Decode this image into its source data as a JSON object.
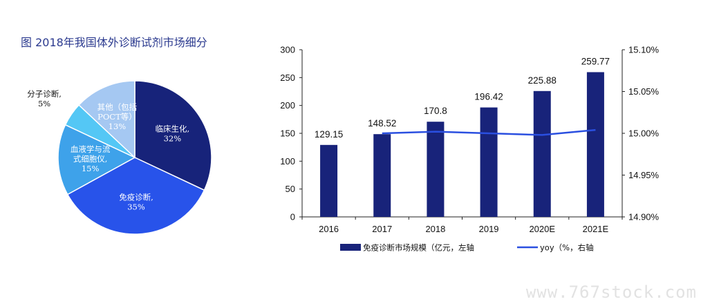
{
  "watermark": "www.767stock.com",
  "chart_data": [
    {
      "type": "pie",
      "title": "图 2018年我国体外诊断试剂市场细分",
      "slices": [
        {
          "label": [
            "临床生化,",
            "32%"
          ],
          "value": 32,
          "color": "#17237a",
          "text_color": "#ffffff"
        },
        {
          "label": [
            "免疫诊断,",
            "35%"
          ],
          "value": 35,
          "color": "#2853ea",
          "text_color": "#ffffff"
        },
        {
          "label": [
            "血液学与流",
            "式细胞仪,",
            "15%"
          ],
          "value": 15,
          "color": "#3ea2ea",
          "text_color": "#ffffff"
        },
        {
          "label": [
            "分子诊断,",
            "5%"
          ],
          "value": 5,
          "color": "#54c7f5",
          "text_color": "#111111",
          "outside": true
        },
        {
          "label": [
            "其他（包括",
            "POCT等）",
            "13%"
          ],
          "value": 13,
          "color": "#a5c8f2",
          "text_color": "#ffffff"
        }
      ]
    },
    {
      "type": "bar",
      "categories": [
        "2016",
        "2017",
        "2018",
        "2019",
        "2020E",
        "2021E"
      ],
      "series": [
        {
          "name": "免疫诊断市场规模（亿元，左轴",
          "type": "bar",
          "axis": "left",
          "color": "#18237a",
          "values": [
            129.15,
            148.52,
            170.8,
            196.42,
            225.88,
            259.77
          ],
          "labels": [
            "129.15",
            "148.52",
            "170.8",
            "196.42",
            "225.88",
            "259.77"
          ]
        },
        {
          "name": "yoy（%，右轴",
          "type": "line",
          "axis": "right",
          "color": "#2a4fe0",
          "values": [
            null,
            15.0,
            15.002,
            15.0,
            14.998,
            15.004
          ]
        }
      ],
      "y_left": {
        "lim": [
          0,
          300
        ],
        "ticks": [
          "0",
          "50",
          "100",
          "150",
          "200",
          "250",
          "300"
        ]
      },
      "y_right": {
        "lim": [
          14.9,
          15.1
        ],
        "ticks": [
          "14.90%",
          "14.95%",
          "15.00%",
          "15.05%",
          "15.10%"
        ]
      },
      "grid": false,
      "legend": "bottom"
    }
  ]
}
